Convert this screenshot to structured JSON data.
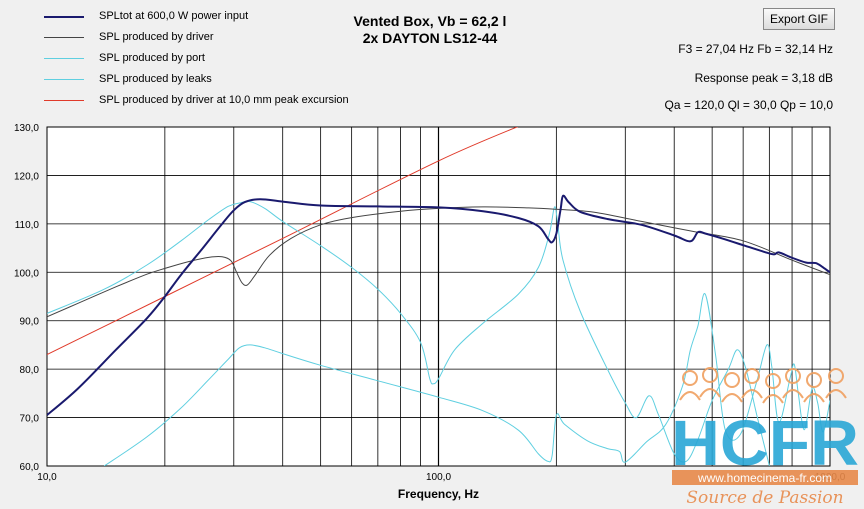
{
  "window": {
    "export_button": "Export GIF",
    "title_line1": "Vented Box, Vb = 62,2 l",
    "title_line2": "2x DAYTON LS12-44",
    "info_line1": "F3 = 27,04 Hz   Fb = 32,14 Hz",
    "info_line2": "Response peak = 3,18 dB",
    "info_line3": "Qa = 120,0   Ql = 30,0   Qp = 10,0"
  },
  "legend": [
    {
      "label": "SPLtot at 600,0 W power input",
      "color": "#1a1a6e"
    },
    {
      "label": "SPL produced by driver",
      "color": "#444444"
    },
    {
      "label": "SPL produced by port",
      "color": "#5fcfe0"
    },
    {
      "label": "SPL produced by leaks",
      "color": "#5fcfe0"
    },
    {
      "label": "SPL produced by driver at 10,0 mm peak excursion",
      "color": "#e03a2a"
    }
  ],
  "watermark": {
    "logo_text": "HCFR",
    "url": "www.homecinema-fr.com",
    "slogan": "Source de Passion"
  },
  "chart_data": {
    "type": "line",
    "xlabel": "Frequency, Hz",
    "ylabel": "",
    "x_scale": "log",
    "xlim": [
      10,
      1000
    ],
    "ylim": [
      60,
      130
    ],
    "grid": true,
    "x_ticks": [
      "10,0",
      "100,0",
      "1000,0"
    ],
    "y_ticks": [
      "60,0",
      "70,0",
      "80,0",
      "90,0",
      "100,0",
      "110,0",
      "120,0",
      "130,0"
    ],
    "series": [
      {
        "name": "SPLtot at 600,0 W power input",
        "color": "#1a1a6e",
        "width": 2,
        "points": [
          [
            10,
            70.5
          ],
          [
            12,
            76
          ],
          [
            15,
            84
          ],
          [
            18,
            90.5
          ],
          [
            20,
            95
          ],
          [
            22,
            99.5
          ],
          [
            25,
            105
          ],
          [
            28,
            110
          ],
          [
            30,
            112.8
          ],
          [
            32,
            114.5
          ],
          [
            35,
            115.1
          ],
          [
            40,
            114.6
          ],
          [
            50,
            113.8
          ],
          [
            70,
            113.6
          ],
          [
            100,
            113.4
          ],
          [
            130,
            112.6
          ],
          [
            160,
            111.2
          ],
          [
            180,
            109.5
          ],
          [
            190,
            107
          ],
          [
            195,
            106.2
          ],
          [
            200,
            108
          ],
          [
            205,
            113
          ],
          [
            208,
            115.8
          ],
          [
            215,
            114.5
          ],
          [
            230,
            112.5
          ],
          [
            270,
            111
          ],
          [
            330,
            109.8
          ],
          [
            400,
            107.6
          ],
          [
            440,
            106.4
          ],
          [
            460,
            108.3
          ],
          [
            480,
            108
          ],
          [
            530,
            107
          ],
          [
            600,
            105.6
          ],
          [
            680,
            104.2
          ],
          [
            720,
            103.7
          ],
          [
            740,
            104.1
          ],
          [
            800,
            103
          ],
          [
            870,
            102
          ],
          [
            920,
            101.9
          ],
          [
            960,
            101
          ],
          [
            1000,
            100
          ]
        ]
      },
      {
        "name": "SPL produced by driver",
        "color": "#444444",
        "width": 1,
        "points": [
          [
            10,
            90.8
          ],
          [
            12,
            93.6
          ],
          [
            15,
            97
          ],
          [
            18,
            99.6
          ],
          [
            20,
            100.8
          ],
          [
            23,
            102.2
          ],
          [
            26,
            103.1
          ],
          [
            28,
            103.2
          ],
          [
            29.5,
            102.4
          ],
          [
            30.5,
            100
          ],
          [
            31.5,
            97.8
          ],
          [
            32.5,
            97.4
          ],
          [
            34,
            99.4
          ],
          [
            37,
            103.5
          ],
          [
            42,
            107
          ],
          [
            50,
            109.8
          ],
          [
            60,
            111.3
          ],
          [
            80,
            112.6
          ],
          [
            100,
            113.2
          ],
          [
            130,
            113.5
          ],
          [
            170,
            113.3
          ],
          [
            200,
            113
          ],
          [
            250,
            112.4
          ],
          [
            330,
            110.5
          ],
          [
            450,
            108.4
          ],
          [
            600,
            106.5
          ],
          [
            800,
            102.5
          ],
          [
            1000,
            99.5
          ]
        ]
      },
      {
        "name": "SPL produced by port",
        "color": "#5fcfe0",
        "width": 1,
        "points": [
          [
            10,
            91.5
          ],
          [
            14,
            96.5
          ],
          [
            18,
            101.5
          ],
          [
            22,
            106.5
          ],
          [
            26,
            111
          ],
          [
            29,
            113.6
          ],
          [
            31,
            114.3
          ],
          [
            33,
            114.6
          ],
          [
            36,
            113.2
          ],
          [
            40,
            110.5
          ],
          [
            50,
            105.5
          ],
          [
            60,
            101
          ],
          [
            70,
            96.5
          ],
          [
            80,
            91.5
          ],
          [
            90,
            85.5
          ],
          [
            95,
            78
          ],
          [
            97,
            77
          ],
          [
            100,
            78
          ],
          [
            110,
            84
          ],
          [
            130,
            89.5
          ],
          [
            160,
            95.5
          ],
          [
            180,
            101
          ],
          [
            192,
            108
          ],
          [
            198,
            113.5
          ],
          [
            202,
            109.5
          ],
          [
            208,
            102.5
          ],
          [
            230,
            92
          ],
          [
            270,
            80
          ],
          [
            300,
            73
          ],
          [
            320,
            70
          ],
          [
            345,
            74.5
          ],
          [
            365,
            70.5
          ],
          [
            400,
            62.5
          ],
          [
            430,
            61
          ],
          [
            460,
            65.5
          ],
          [
            500,
            73.5
          ],
          [
            550,
            80
          ],
          [
            580,
            84
          ],
          [
            610,
            80
          ],
          [
            650,
            70.5
          ],
          [
            700,
            60
          ]
        ]
      },
      {
        "name": "SPL produced by leaks",
        "color": "#5fcfe0",
        "width": 1,
        "points": [
          [
            14,
            60
          ],
          [
            18,
            66
          ],
          [
            22,
            72
          ],
          [
            26,
            78
          ],
          [
            29,
            82
          ],
          [
            31,
            84.4
          ],
          [
            33,
            85
          ],
          [
            36,
            84.4
          ],
          [
            40,
            83.2
          ],
          [
            50,
            80.8
          ],
          [
            70,
            77.6
          ],
          [
            100,
            74.2
          ],
          [
            130,
            71.4
          ],
          [
            160,
            67.4
          ],
          [
            180,
            62.5
          ],
          [
            190,
            61
          ],
          [
            195,
            62
          ],
          [
            200,
            70.5
          ],
          [
            210,
            68.6
          ],
          [
            240,
            65.2
          ],
          [
            270,
            63.6
          ],
          [
            290,
            63
          ],
          [
            300,
            60.8
          ],
          [
            340,
            65
          ],
          [
            380,
            68.5
          ],
          [
            420,
            76.5
          ],
          [
            440,
            84
          ],
          [
            460,
            89
          ],
          [
            480,
            95.5
          ],
          [
            510,
            83
          ],
          [
            540,
            67.5
          ],
          [
            590,
            66.5
          ],
          [
            650,
            77.5
          ],
          [
            690,
            85
          ],
          [
            710,
            80.5
          ],
          [
            740,
            69
          ],
          [
            790,
            78
          ],
          [
            810,
            81
          ],
          [
            830,
            75
          ],
          [
            860,
            67.5
          ],
          [
            900,
            76
          ],
          [
            930,
            73
          ],
          [
            960,
            67
          ],
          [
            1000,
            73.5
          ]
        ]
      },
      {
        "name": "SPL produced by driver at 10,0 mm peak excursion",
        "color": "#e03a2a",
        "width": 1,
        "points": [
          [
            10,
            83
          ],
          [
            20,
            95
          ],
          [
            40,
            107
          ],
          [
            100,
            123
          ],
          [
            170,
            131
          ]
        ]
      }
    ]
  }
}
